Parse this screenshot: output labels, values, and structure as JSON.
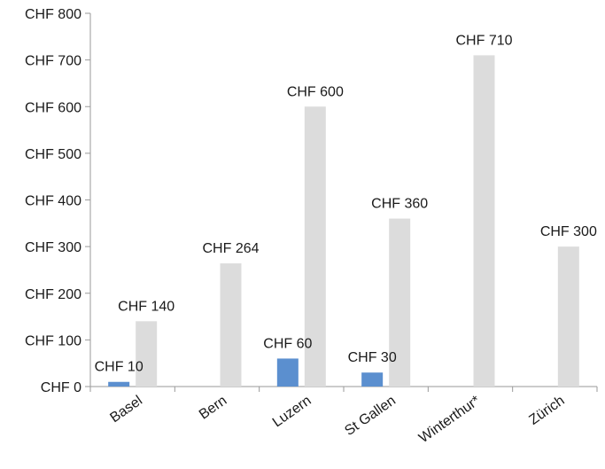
{
  "chart_data": {
    "type": "bar",
    "title": "",
    "xlabel": "",
    "ylabel": "",
    "ylim": [
      0,
      800
    ],
    "yticks": [
      "CHF 0",
      "CHF 100",
      "CHF 200",
      "CHF 300",
      "CHF 400",
      "CHF 500",
      "CHF 600",
      "CHF 700",
      "CHF 800"
    ],
    "categories": [
      "Basel",
      "Bern",
      "Luzern",
      "St Gallen",
      "Winterthur*",
      "Zürich"
    ],
    "grid": false,
    "legend": "none",
    "series": [
      {
        "color": "#5b8fcf",
        "values": [
          10,
          null,
          60,
          30,
          null,
          null
        ],
        "data_labels": [
          "CHF 10",
          "",
          "CHF 60",
          "CHF 30",
          "",
          ""
        ]
      },
      {
        "color": "#dcdcdc",
        "values": [
          140,
          264,
          600,
          360,
          710,
          300
        ],
        "data_labels": [
          "CHF 140",
          "CHF 264",
          "CHF 600",
          "CHF 360",
          "CHF 710",
          "CHF 300"
        ]
      }
    ]
  }
}
